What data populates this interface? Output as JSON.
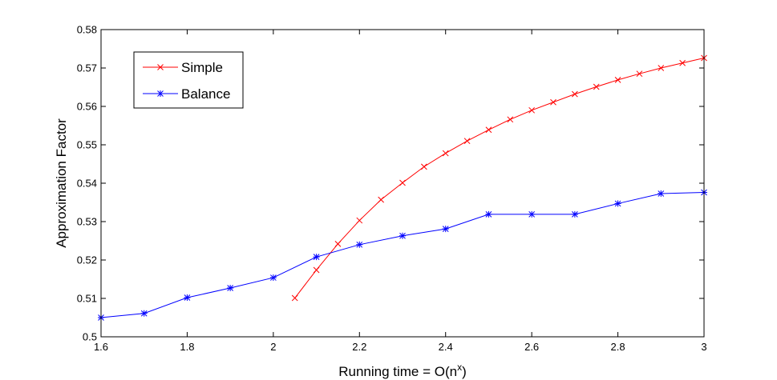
{
  "chart_data": {
    "type": "line",
    "title": "",
    "xlabel": "Running time = O(n",
    "xlabel_sup": "x",
    "xlabel_suffix": ")",
    "ylabel": "Approximation Factor",
    "xlim": [
      1.6,
      3
    ],
    "ylim": [
      0.5,
      0.58
    ],
    "xticks": [
      1.6,
      1.8,
      2,
      2.2,
      2.4,
      2.6,
      2.8,
      3
    ],
    "xtick_labels": [
      "1.6",
      "1.8",
      "2",
      "2.2",
      "2.4",
      "2.6",
      "2.8",
      "3"
    ],
    "yticks": [
      0.5,
      0.51,
      0.52,
      0.53,
      0.54,
      0.55,
      0.56,
      0.57,
      0.58
    ],
    "ytick_labels": [
      "0.5",
      "0.51",
      "0.52",
      "0.53",
      "0.54",
      "0.55",
      "0.56",
      "0.57",
      "0.58"
    ],
    "grid": false,
    "legend_position": "top-left",
    "series": [
      {
        "name": "Simple",
        "color": "#ff0000",
        "marker": "x",
        "x": [
          2.05,
          2.1,
          2.15,
          2.2,
          2.25,
          2.3,
          2.35,
          2.4,
          2.45,
          2.5,
          2.55,
          2.6,
          2.65,
          2.7,
          2.75,
          2.8,
          2.85,
          2.9,
          2.95,
          3.0
        ],
        "y": [
          0.5101,
          0.5174,
          0.5242,
          0.5303,
          0.5357,
          0.5401,
          0.5443,
          0.5478,
          0.551,
          0.5539,
          0.5566,
          0.559,
          0.5611,
          0.5632,
          0.5651,
          0.5669,
          0.5685,
          0.57,
          0.5713,
          0.5726
        ]
      },
      {
        "name": "Balance",
        "color": "#0000ff",
        "marker": "*",
        "x": [
          1.6,
          1.7,
          1.8,
          1.9,
          2.0,
          2.1,
          2.2,
          2.3,
          2.4,
          2.5,
          2.6,
          2.7,
          2.8,
          2.9,
          3.0
        ],
        "y": [
          0.505,
          0.5061,
          0.5102,
          0.5127,
          0.5154,
          0.5208,
          0.524,
          0.5263,
          0.5281,
          0.5319,
          0.5319,
          0.5319,
          0.5347,
          0.5373,
          0.5376
        ]
      }
    ]
  }
}
